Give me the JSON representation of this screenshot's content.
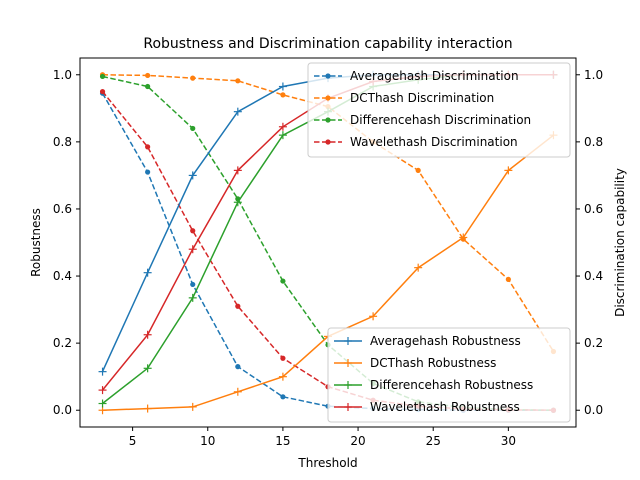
{
  "chart_data": {
    "type": "line",
    "title": "Robustness and Discrimination capability interaction",
    "xlabel": "Threshold",
    "ylabel": "Robustness",
    "y2label": "Discrimination capability",
    "xlim": [
      1.5,
      34.5
    ],
    "ylim": [
      -0.05,
      1.05
    ],
    "y2lim": [
      -0.05,
      1.05
    ],
    "xticks": [
      5,
      10,
      15,
      20,
      25,
      30
    ],
    "yticks": [
      0.0,
      0.2,
      0.4,
      0.6,
      0.8,
      1.0
    ],
    "y2ticks": [
      0.0,
      0.2,
      0.4,
      0.6,
      0.8,
      1.0
    ],
    "x": [
      3,
      6,
      9,
      12,
      15,
      18,
      21,
      24,
      27,
      30,
      33
    ],
    "robustness_legend_position": "lower-right",
    "discrimination_legend_position": "upper-right",
    "series": [
      {
        "name": "Averagehash Robustness",
        "axis": "left",
        "style": "solid",
        "marker": "plus",
        "color": "#1f77b4",
        "values": [
          0.115,
          0.41,
          0.7,
          0.89,
          0.965,
          0.99,
          1.0,
          1.0,
          1.0,
          1.0,
          1.0
        ]
      },
      {
        "name": "DCThash Robustness",
        "axis": "left",
        "style": "solid",
        "marker": "plus",
        "color": "#ff7f0e",
        "values": [
          0.0,
          0.005,
          0.01,
          0.055,
          0.1,
          0.22,
          0.28,
          0.425,
          0.515,
          0.715,
          0.82
        ]
      },
      {
        "name": "Differencehash Robustness",
        "axis": "left",
        "style": "solid",
        "marker": "plus",
        "color": "#2ca02c",
        "values": [
          0.02,
          0.125,
          0.335,
          0.62,
          0.82,
          0.89,
          0.965,
          0.985,
          1.0,
          1.0,
          1.0
        ]
      },
      {
        "name": "Wavelethash Robustness",
        "axis": "left",
        "style": "solid",
        "marker": "plus",
        "color": "#d62728",
        "values": [
          0.06,
          0.225,
          0.48,
          0.715,
          0.845,
          0.93,
          0.98,
          0.995,
          1.0,
          1.0,
          1.0
        ]
      },
      {
        "name": "Averagehash Discrimination",
        "axis": "right",
        "style": "dashed",
        "marker": "dot",
        "color": "#1f77b4",
        "values": [
          0.945,
          0.71,
          0.375,
          0.13,
          0.04,
          0.012,
          0.005,
          0.002,
          0.0,
          0.0,
          0.0
        ]
      },
      {
        "name": "DCThash Discrimination",
        "axis": "right",
        "style": "dashed",
        "marker": "dot",
        "color": "#ff7f0e",
        "values": [
          1.0,
          0.998,
          0.99,
          0.982,
          0.94,
          0.905,
          0.8,
          0.715,
          0.51,
          0.39,
          0.175
        ]
      },
      {
        "name": "Differencehash Discrimination",
        "axis": "right",
        "style": "dashed",
        "marker": "dot",
        "color": "#2ca02c",
        "values": [
          0.995,
          0.965,
          0.84,
          0.63,
          0.385,
          0.195,
          0.08,
          0.025,
          0.008,
          0.002,
          0.0
        ]
      },
      {
        "name": "Wavelethash Discrimination",
        "axis": "right",
        "style": "dashed",
        "marker": "dot",
        "color": "#d62728",
        "values": [
          0.95,
          0.785,
          0.535,
          0.31,
          0.155,
          0.07,
          0.03,
          0.012,
          0.004,
          0.001,
          0.0
        ]
      }
    ]
  }
}
